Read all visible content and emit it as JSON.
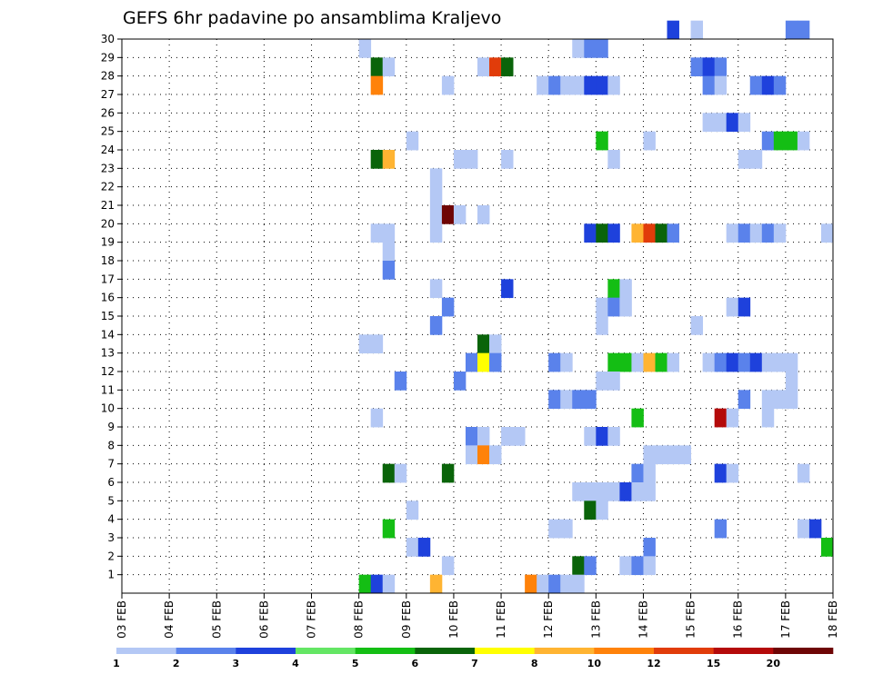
{
  "chart_data": {
    "type": "heatmap",
    "title": "GEFS 6hr padavine po ansamblima Kraljevo",
    "xlabel": "",
    "ylabel": "",
    "x_ticks": [
      "03 FEB",
      "04 FEB",
      "05 FEB",
      "06 FEB",
      "07 FEB",
      "08 FEB",
      "09 FEB",
      "10 FEB",
      "11 FEB",
      "12 FEB",
      "13 FEB",
      "14 FEB",
      "15 FEB",
      "16 FEB",
      "17 FEB",
      "18 FEB"
    ],
    "x_range_days": [
      0,
      15
    ],
    "time_step_hours": 6,
    "members": [
      1,
      2,
      3,
      4,
      5,
      6,
      7,
      8,
      9,
      10,
      11,
      12,
      13,
      14,
      15,
      16,
      17,
      18,
      19,
      20,
      21,
      22,
      23,
      24,
      25,
      26,
      27,
      28,
      29,
      30
    ],
    "y_range": [
      0,
      30
    ],
    "grid": "dotted",
    "legend": {
      "position": "bottom",
      "labels": [
        "1",
        "2",
        "3",
        "4",
        "5",
        "6",
        "7",
        "8",
        "10",
        "12",
        "15",
        "20"
      ],
      "colors": [
        "#b4c8f5",
        "#5a82eb",
        "#1e41dc",
        "#64e664",
        "#14be14",
        "#0a640a",
        "#ffff00",
        "#ffb432",
        "#ff820a",
        "#e13c0a",
        "#b40a0a",
        "#6e0505"
      ]
    },
    "cells": [
      {
        "member": 30,
        "day": 11.5,
        "cls": 3
      },
      {
        "member": 30,
        "day": 12.0,
        "cls": 1
      },
      {
        "member": 30,
        "day": 14.0,
        "cls": 2
      },
      {
        "member": 30,
        "day": 14.25,
        "cls": 2
      },
      {
        "member": 29,
        "day": 5.0,
        "cls": 1
      },
      {
        "member": 29,
        "day": 9.5,
        "cls": 1
      },
      {
        "member": 29,
        "day": 9.75,
        "cls": 2
      },
      {
        "member": 29,
        "day": 10.0,
        "cls": 2
      },
      {
        "member": 28,
        "day": 5.25,
        "cls": 6
      },
      {
        "member": 28,
        "day": 5.5,
        "cls": 1
      },
      {
        "member": 28,
        "day": 7.5,
        "cls": 1
      },
      {
        "member": 28,
        "day": 7.75,
        "cls": 10
      },
      {
        "member": 28,
        "day": 8.0,
        "cls": 6
      },
      {
        "member": 28,
        "day": 12.0,
        "cls": 2
      },
      {
        "member": 28,
        "day": 12.25,
        "cls": 3
      },
      {
        "member": 28,
        "day": 12.5,
        "cls": 2
      },
      {
        "member": 27,
        "day": 5.25,
        "cls": 9
      },
      {
        "member": 27,
        "day": 6.75,
        "cls": 1
      },
      {
        "member": 27,
        "day": 8.75,
        "cls": 1
      },
      {
        "member": 27,
        "day": 9.0,
        "cls": 2
      },
      {
        "member": 27,
        "day": 9.25,
        "cls": 1
      },
      {
        "member": 27,
        "day": 9.5,
        "cls": 1
      },
      {
        "member": 27,
        "day": 9.75,
        "cls": 3
      },
      {
        "member": 27,
        "day": 10.0,
        "cls": 3
      },
      {
        "member": 27,
        "day": 10.25,
        "cls": 1
      },
      {
        "member": 27,
        "day": 12.25,
        "cls": 2
      },
      {
        "member": 27,
        "day": 12.5,
        "cls": 1
      },
      {
        "member": 27,
        "day": 13.25,
        "cls": 2
      },
      {
        "member": 27,
        "day": 13.5,
        "cls": 3
      },
      {
        "member": 27,
        "day": 13.75,
        "cls": 2
      },
      {
        "member": 25,
        "day": 12.25,
        "cls": 1
      },
      {
        "member": 25,
        "day": 12.5,
        "cls": 1
      },
      {
        "member": 25,
        "day": 12.75,
        "cls": 3
      },
      {
        "member": 25,
        "day": 13.0,
        "cls": 1
      },
      {
        "member": 24,
        "day": 6.0,
        "cls": 1
      },
      {
        "member": 24,
        "day": 10.0,
        "cls": 5
      },
      {
        "member": 24,
        "day": 11.0,
        "cls": 1
      },
      {
        "member": 24,
        "day": 13.5,
        "cls": 2
      },
      {
        "member": 24,
        "day": 13.75,
        "cls": 5
      },
      {
        "member": 24,
        "day": 14.0,
        "cls": 5
      },
      {
        "member": 24,
        "day": 14.25,
        "cls": 1
      },
      {
        "member": 23,
        "day": 5.25,
        "cls": 6
      },
      {
        "member": 23,
        "day": 5.5,
        "cls": 8
      },
      {
        "member": 23,
        "day": 7.0,
        "cls": 1
      },
      {
        "member": 23,
        "day": 7.25,
        "cls": 1
      },
      {
        "member": 23,
        "day": 8.0,
        "cls": 1
      },
      {
        "member": 23,
        "day": 10.25,
        "cls": 1
      },
      {
        "member": 23,
        "day": 13.0,
        "cls": 1
      },
      {
        "member": 23,
        "day": 13.25,
        "cls": 1
      },
      {
        "member": 22,
        "day": 6.5,
        "cls": 1
      },
      {
        "member": 21,
        "day": 6.5,
        "cls": 1
      },
      {
        "member": 20,
        "day": 6.5,
        "cls": 1
      },
      {
        "member": 20,
        "day": 6.75,
        "cls": 12
      },
      {
        "member": 20,
        "day": 7.0,
        "cls": 1
      },
      {
        "member": 20,
        "day": 7.5,
        "cls": 1
      },
      {
        "member": 19,
        "day": 5.25,
        "cls": 1
      },
      {
        "member": 19,
        "day": 5.5,
        "cls": 1
      },
      {
        "member": 19,
        "day": 6.5,
        "cls": 1
      },
      {
        "member": 19,
        "day": 9.75,
        "cls": 3
      },
      {
        "member": 19,
        "day": 10.0,
        "cls": 6
      },
      {
        "member": 19,
        "day": 10.25,
        "cls": 3
      },
      {
        "member": 19,
        "day": 10.75,
        "cls": 8
      },
      {
        "member": 19,
        "day": 11.0,
        "cls": 10
      },
      {
        "member": 19,
        "day": 11.25,
        "cls": 6
      },
      {
        "member": 19,
        "day": 11.5,
        "cls": 2
      },
      {
        "member": 19,
        "day": 12.75,
        "cls": 1
      },
      {
        "member": 19,
        "day": 13.0,
        "cls": 2
      },
      {
        "member": 19,
        "day": 13.25,
        "cls": 1
      },
      {
        "member": 19,
        "day": 13.5,
        "cls": 2
      },
      {
        "member": 19,
        "day": 13.75,
        "cls": 1
      },
      {
        "member": 19,
        "day": 14.75,
        "cls": 1
      },
      {
        "member": 18,
        "day": 5.5,
        "cls": 1
      },
      {
        "member": 17,
        "day": 5.5,
        "cls": 2
      },
      {
        "member": 16,
        "day": 6.5,
        "cls": 1
      },
      {
        "member": 16,
        "day": 8.0,
        "cls": 3
      },
      {
        "member": 16,
        "day": 10.25,
        "cls": 5
      },
      {
        "member": 16,
        "day": 10.5,
        "cls": 1
      },
      {
        "member": 15,
        "day": 6.75,
        "cls": 2
      },
      {
        "member": 15,
        "day": 10.0,
        "cls": 1
      },
      {
        "member": 15,
        "day": 10.25,
        "cls": 2
      },
      {
        "member": 15,
        "day": 10.5,
        "cls": 1
      },
      {
        "member": 15,
        "day": 12.75,
        "cls": 1
      },
      {
        "member": 15,
        "day": 13.0,
        "cls": 3
      },
      {
        "member": 14,
        "day": 6.5,
        "cls": 2
      },
      {
        "member": 14,
        "day": 10.0,
        "cls": 1
      },
      {
        "member": 14,
        "day": 12.0,
        "cls": 1
      },
      {
        "member": 13,
        "day": 5.0,
        "cls": 1
      },
      {
        "member": 13,
        "day": 5.25,
        "cls": 1
      },
      {
        "member": 13,
        "day": 7.5,
        "cls": 6
      },
      {
        "member": 13,
        "day": 7.75,
        "cls": 1
      },
      {
        "member": 12,
        "day": 7.25,
        "cls": 2
      },
      {
        "member": 12,
        "day": 7.5,
        "cls": 7
      },
      {
        "member": 12,
        "day": 7.75,
        "cls": 2
      },
      {
        "member": 12,
        "day": 9.0,
        "cls": 2
      },
      {
        "member": 12,
        "day": 9.25,
        "cls": 1
      },
      {
        "member": 12,
        "day": 10.25,
        "cls": 5
      },
      {
        "member": 12,
        "day": 10.5,
        "cls": 5
      },
      {
        "member": 12,
        "day": 10.75,
        "cls": 1
      },
      {
        "member": 12,
        "day": 11.0,
        "cls": 8
      },
      {
        "member": 12,
        "day": 11.25,
        "cls": 5
      },
      {
        "member": 12,
        "day": 11.5,
        "cls": 1
      },
      {
        "member": 12,
        "day": 12.25,
        "cls": 1
      },
      {
        "member": 12,
        "day": 12.5,
        "cls": 2
      },
      {
        "member": 12,
        "day": 12.75,
        "cls": 3
      },
      {
        "member": 12,
        "day": 13.0,
        "cls": 2
      },
      {
        "member": 12,
        "day": 13.25,
        "cls": 3
      },
      {
        "member": 12,
        "day": 13.5,
        "cls": 1
      },
      {
        "member": 12,
        "day": 13.75,
        "cls": 1
      },
      {
        "member": 12,
        "day": 14.0,
        "cls": 1
      },
      {
        "member": 11,
        "day": 5.75,
        "cls": 2
      },
      {
        "member": 11,
        "day": 7.0,
        "cls": 2
      },
      {
        "member": 11,
        "day": 10.0,
        "cls": 1
      },
      {
        "member": 11,
        "day": 10.25,
        "cls": 1
      },
      {
        "member": 11,
        "day": 14.0,
        "cls": 1
      },
      {
        "member": 10,
        "day": 9.0,
        "cls": 2
      },
      {
        "member": 10,
        "day": 9.25,
        "cls": 1
      },
      {
        "member": 10,
        "day": 9.5,
        "cls": 2
      },
      {
        "member": 10,
        "day": 9.75,
        "cls": 2
      },
      {
        "member": 10,
        "day": 13.0,
        "cls": 2
      },
      {
        "member": 10,
        "day": 13.5,
        "cls": 1
      },
      {
        "member": 10,
        "day": 13.75,
        "cls": 1
      },
      {
        "member": 10,
        "day": 14.0,
        "cls": 1
      },
      {
        "member": 9,
        "day": 5.25,
        "cls": 1
      },
      {
        "member": 9,
        "day": 10.75,
        "cls": 5
      },
      {
        "member": 9,
        "day": 12.5,
        "cls": 11
      },
      {
        "member": 9,
        "day": 12.75,
        "cls": 1
      },
      {
        "member": 9,
        "day": 13.5,
        "cls": 1
      },
      {
        "member": 8,
        "day": 7.25,
        "cls": 2
      },
      {
        "member": 8,
        "day": 7.5,
        "cls": 1
      },
      {
        "member": 8,
        "day": 8.0,
        "cls": 1
      },
      {
        "member": 8,
        "day": 8.25,
        "cls": 1
      },
      {
        "member": 8,
        "day": 9.75,
        "cls": 1
      },
      {
        "member": 8,
        "day": 10.0,
        "cls": 3
      },
      {
        "member": 8,
        "day": 10.25,
        "cls": 1
      },
      {
        "member": 7,
        "day": 7.25,
        "cls": 1
      },
      {
        "member": 7,
        "day": 7.5,
        "cls": 9
      },
      {
        "member": 7,
        "day": 7.75,
        "cls": 1
      },
      {
        "member": 7,
        "day": 11.0,
        "cls": 1
      },
      {
        "member": 7,
        "day": 11.25,
        "cls": 1
      },
      {
        "member": 7,
        "day": 11.5,
        "cls": 1
      },
      {
        "member": 7,
        "day": 11.75,
        "cls": 1
      },
      {
        "member": 6,
        "day": 5.5,
        "cls": 6
      },
      {
        "member": 6,
        "day": 5.75,
        "cls": 1
      },
      {
        "member": 6,
        "day": 6.75,
        "cls": 6
      },
      {
        "member": 6,
        "day": 10.75,
        "cls": 2
      },
      {
        "member": 6,
        "day": 11.0,
        "cls": 1
      },
      {
        "member": 6,
        "day": 12.5,
        "cls": 3
      },
      {
        "member": 6,
        "day": 12.75,
        "cls": 1
      },
      {
        "member": 6,
        "day": 14.25,
        "cls": 1
      },
      {
        "member": 5,
        "day": 9.5,
        "cls": 1
      },
      {
        "member": 5,
        "day": 9.75,
        "cls": 1
      },
      {
        "member": 5,
        "day": 10.0,
        "cls": 1
      },
      {
        "member": 5,
        "day": 10.25,
        "cls": 1
      },
      {
        "member": 5,
        "day": 10.5,
        "cls": 3
      },
      {
        "member": 5,
        "day": 10.75,
        "cls": 1
      },
      {
        "member": 5,
        "day": 11.0,
        "cls": 1
      },
      {
        "member": 4,
        "day": 6.0,
        "cls": 1
      },
      {
        "member": 4,
        "day": 9.75,
        "cls": 6
      },
      {
        "member": 4,
        "day": 10.0,
        "cls": 1
      },
      {
        "member": 3,
        "day": 5.5,
        "cls": 5
      },
      {
        "member": 3,
        "day": 9.0,
        "cls": 1
      },
      {
        "member": 3,
        "day": 9.25,
        "cls": 1
      },
      {
        "member": 3,
        "day": 12.5,
        "cls": 2
      },
      {
        "member": 3,
        "day": 14.25,
        "cls": 1
      },
      {
        "member": 3,
        "day": 14.5,
        "cls": 3
      },
      {
        "member": 2,
        "day": 6.0,
        "cls": 1
      },
      {
        "member": 2,
        "day": 6.25,
        "cls": 3
      },
      {
        "member": 2,
        "day": 11.0,
        "cls": 2
      },
      {
        "member": 2,
        "day": 14.75,
        "cls": 5
      },
      {
        "member": 1,
        "day": 6.75,
        "cls": 1
      },
      {
        "member": 1,
        "day": 9.5,
        "cls": 6
      },
      {
        "member": 1,
        "day": 9.75,
        "cls": 2
      },
      {
        "member": 1,
        "day": 10.5,
        "cls": 1
      },
      {
        "member": 1,
        "day": 10.75,
        "cls": 2
      },
      {
        "member": 1,
        "day": 11.0,
        "cls": 1
      },
      {
        "member": 0,
        "day": 5.0,
        "cls": 5
      },
      {
        "member": 0,
        "day": 5.25,
        "cls": 3
      },
      {
        "member": 0,
        "day": 5.5,
        "cls": 1
      },
      {
        "member": 0,
        "day": 6.5,
        "cls": 8
      },
      {
        "member": 0,
        "day": 8.5,
        "cls": 9
      },
      {
        "member": 0,
        "day": 8.75,
        "cls": 1
      },
      {
        "member": 0,
        "day": 9.0,
        "cls": 2
      },
      {
        "member": 0,
        "day": 9.25,
        "cls": 1
      },
      {
        "member": 0,
        "day": 9.5,
        "cls": 1
      }
    ]
  }
}
